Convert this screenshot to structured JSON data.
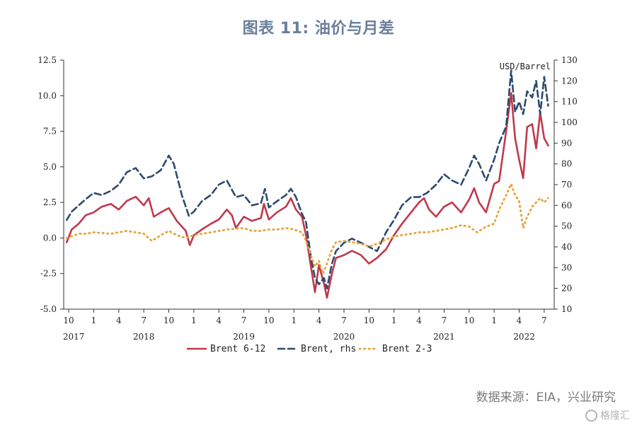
{
  "title": "图表 11: 油价与月差",
  "source": "数据来源：EIA，兴业研究",
  "watermark": "格隆汇",
  "chart_data": {
    "type": "line",
    "y_left": {
      "min": -5.0,
      "max": 12.5,
      "ticks": [
        "12.5",
        "10.0",
        "7.5",
        "5.0",
        "2.5",
        "0.0",
        "-2.5",
        "-5.0"
      ]
    },
    "y_right": {
      "unit": "USD/Barrel",
      "min": 10,
      "max": 130,
      "ticks": [
        "130",
        "120",
        "110",
        "100",
        "90",
        "80",
        "70",
        "60",
        "50",
        "40",
        "30",
        "20",
        "10"
      ]
    },
    "x_range": [
      2017.7,
      2022.6
    ],
    "x_ticks": [
      {
        "t": 2017.75,
        "label": "10"
      },
      {
        "t": 2018.0,
        "label": "1"
      },
      {
        "t": 2018.25,
        "label": "4"
      },
      {
        "t": 2018.5,
        "label": "7"
      },
      {
        "t": 2018.75,
        "label": "10"
      },
      {
        "t": 2019.0,
        "label": "1"
      },
      {
        "t": 2019.25,
        "label": "4"
      },
      {
        "t": 2019.5,
        "label": "7"
      },
      {
        "t": 2019.75,
        "label": "10"
      },
      {
        "t": 2020.0,
        "label": "1"
      },
      {
        "t": 2020.25,
        "label": "4"
      },
      {
        "t": 2020.5,
        "label": "7"
      },
      {
        "t": 2020.75,
        "label": "10"
      },
      {
        "t": 2021.0,
        "label": "1"
      },
      {
        "t": 2021.25,
        "label": "4"
      },
      {
        "t": 2021.5,
        "label": "7"
      },
      {
        "t": 2021.75,
        "label": "10"
      },
      {
        "t": 2022.0,
        "label": "1"
      },
      {
        "t": 2022.25,
        "label": "4"
      },
      {
        "t": 2022.5,
        "label": "7"
      }
    ],
    "year_labels": [
      {
        "t": 2017.8,
        "label": "2017"
      },
      {
        "t": 2018.5,
        "label": "2018"
      },
      {
        "t": 2019.5,
        "label": "2019"
      },
      {
        "t": 2020.5,
        "label": "2020"
      },
      {
        "t": 2021.5,
        "label": "2021"
      },
      {
        "t": 2022.3,
        "label": "2022"
      }
    ],
    "series": [
      {
        "name": "Brent 6-12",
        "axis": "left",
        "color": "#c0394b",
        "style": "solid",
        "points": [
          [
            2017.73,
            -0.3
          ],
          [
            2017.78,
            0.6
          ],
          [
            2017.85,
            1.0
          ],
          [
            2017.92,
            1.6
          ],
          [
            2018.0,
            1.8
          ],
          [
            2018.08,
            2.2
          ],
          [
            2018.17,
            2.4
          ],
          [
            2018.25,
            2.0
          ],
          [
            2018.33,
            2.6
          ],
          [
            2018.42,
            2.9
          ],
          [
            2018.5,
            2.3
          ],
          [
            2018.55,
            2.8
          ],
          [
            2018.6,
            1.5
          ],
          [
            2018.67,
            1.8
          ],
          [
            2018.75,
            2.1
          ],
          [
            2018.83,
            1.2
          ],
          [
            2018.92,
            0.5
          ],
          [
            2018.96,
            -0.5
          ],
          [
            2019.0,
            0.2
          ],
          [
            2019.08,
            0.6
          ],
          [
            2019.17,
            1.0
          ],
          [
            2019.25,
            1.3
          ],
          [
            2019.33,
            2.0
          ],
          [
            2019.38,
            1.6
          ],
          [
            2019.42,
            0.7
          ],
          [
            2019.5,
            1.5
          ],
          [
            2019.58,
            1.2
          ],
          [
            2019.67,
            1.4
          ],
          [
            2019.7,
            2.4
          ],
          [
            2019.75,
            1.3
          ],
          [
            2019.83,
            1.8
          ],
          [
            2019.92,
            2.2
          ],
          [
            2019.97,
            2.8
          ],
          [
            2020.02,
            2.0
          ],
          [
            2020.08,
            1.5
          ],
          [
            2020.12,
            0.2
          ],
          [
            2020.17,
            -2.0
          ],
          [
            2020.21,
            -3.8
          ],
          [
            2020.25,
            -1.9
          ],
          [
            2020.3,
            -3.2
          ],
          [
            2020.33,
            -4.2
          ],
          [
            2020.38,
            -2.5
          ],
          [
            2020.42,
            -1.4
          ],
          [
            2020.5,
            -1.2
          ],
          [
            2020.58,
            -0.9
          ],
          [
            2020.67,
            -1.2
          ],
          [
            2020.75,
            -1.8
          ],
          [
            2020.83,
            -1.4
          ],
          [
            2020.92,
            -0.8
          ],
          [
            2021.0,
            0.2
          ],
          [
            2021.08,
            1.0
          ],
          [
            2021.17,
            1.8
          ],
          [
            2021.25,
            2.5
          ],
          [
            2021.3,
            2.8
          ],
          [
            2021.35,
            2.0
          ],
          [
            2021.42,
            1.5
          ],
          [
            2021.5,
            2.2
          ],
          [
            2021.58,
            2.5
          ],
          [
            2021.67,
            1.8
          ],
          [
            2021.75,
            2.7
          ],
          [
            2021.8,
            3.5
          ],
          [
            2021.85,
            2.5
          ],
          [
            2021.92,
            1.8
          ],
          [
            2022.0,
            3.8
          ],
          [
            2022.05,
            4.0
          ],
          [
            2022.12,
            7.5
          ],
          [
            2022.17,
            10.2
          ],
          [
            2022.21,
            7.0
          ],
          [
            2022.25,
            5.5
          ],
          [
            2022.29,
            4.2
          ],
          [
            2022.33,
            7.8
          ],
          [
            2022.38,
            8.0
          ],
          [
            2022.42,
            6.3
          ],
          [
            2022.46,
            8.8
          ],
          [
            2022.5,
            7.0
          ],
          [
            2022.54,
            6.5
          ]
        ]
      },
      {
        "name": "Brent, rhs",
        "axis": "right",
        "color": "#2c4a6e",
        "style": "dashed",
        "points": [
          [
            2017.73,
            53
          ],
          [
            2017.78,
            57
          ],
          [
            2017.85,
            60
          ],
          [
            2017.92,
            63
          ],
          [
            2018.0,
            66
          ],
          [
            2018.08,
            65
          ],
          [
            2018.17,
            67
          ],
          [
            2018.25,
            70
          ],
          [
            2018.33,
            76
          ],
          [
            2018.42,
            78
          ],
          [
            2018.5,
            73
          ],
          [
            2018.58,
            74
          ],
          [
            2018.67,
            77
          ],
          [
            2018.75,
            84
          ],
          [
            2018.8,
            80
          ],
          [
            2018.88,
            65
          ],
          [
            2018.95,
            55
          ],
          [
            2019.0,
            57
          ],
          [
            2019.08,
            62
          ],
          [
            2019.17,
            65
          ],
          [
            2019.25,
            70
          ],
          [
            2019.33,
            72
          ],
          [
            2019.42,
            64
          ],
          [
            2019.5,
            65
          ],
          [
            2019.58,
            60
          ],
          [
            2019.67,
            61
          ],
          [
            2019.71,
            68
          ],
          [
            2019.75,
            59
          ],
          [
            2019.83,
            62
          ],
          [
            2019.92,
            65
          ],
          [
            2019.97,
            68
          ],
          [
            2020.02,
            64
          ],
          [
            2020.08,
            56
          ],
          [
            2020.12,
            52
          ],
          [
            2020.17,
            35
          ],
          [
            2020.21,
            25
          ],
          [
            2020.25,
            22
          ],
          [
            2020.3,
            25
          ],
          [
            2020.33,
            20
          ],
          [
            2020.38,
            32
          ],
          [
            2020.42,
            38
          ],
          [
            2020.5,
            42
          ],
          [
            2020.58,
            44
          ],
          [
            2020.67,
            42
          ],
          [
            2020.75,
            40
          ],
          [
            2020.83,
            38
          ],
          [
            2020.92,
            47
          ],
          [
            2021.0,
            53
          ],
          [
            2021.08,
            60
          ],
          [
            2021.17,
            64
          ],
          [
            2021.25,
            64
          ],
          [
            2021.33,
            66
          ],
          [
            2021.42,
            70
          ],
          [
            2021.5,
            75
          ],
          [
            2021.58,
            72
          ],
          [
            2021.67,
            70
          ],
          [
            2021.75,
            78
          ],
          [
            2021.8,
            84
          ],
          [
            2021.85,
            80
          ],
          [
            2021.92,
            72
          ],
          [
            2022.0,
            82
          ],
          [
            2022.05,
            90
          ],
          [
            2022.12,
            98
          ],
          [
            2022.17,
            125
          ],
          [
            2022.21,
            105
          ],
          [
            2022.25,
            110
          ],
          [
            2022.29,
            104
          ],
          [
            2022.33,
            115
          ],
          [
            2022.38,
            112
          ],
          [
            2022.42,
            120
          ],
          [
            2022.46,
            104
          ],
          [
            2022.5,
            122
          ],
          [
            2022.54,
            108
          ]
        ]
      },
      {
        "name": "Brent 2-3",
        "axis": "left",
        "color": "#e8a33b",
        "style": "dotted",
        "points": [
          [
            2017.73,
            0.0
          ],
          [
            2017.85,
            0.3
          ],
          [
            2017.92,
            0.3
          ],
          [
            2018.0,
            0.4
          ],
          [
            2018.17,
            0.3
          ],
          [
            2018.33,
            0.5
          ],
          [
            2018.42,
            0.4
          ],
          [
            2018.5,
            0.3
          ],
          [
            2018.58,
            -0.2
          ],
          [
            2018.67,
            0.2
          ],
          [
            2018.75,
            0.5
          ],
          [
            2018.83,
            0.2
          ],
          [
            2018.92,
            0.0
          ],
          [
            2019.0,
            0.2
          ],
          [
            2019.17,
            0.4
          ],
          [
            2019.33,
            0.6
          ],
          [
            2019.5,
            0.7
          ],
          [
            2019.58,
            0.5
          ],
          [
            2019.67,
            0.5
          ],
          [
            2019.75,
            0.6
          ],
          [
            2019.83,
            0.6
          ],
          [
            2019.92,
            0.7
          ],
          [
            2020.0,
            0.6
          ],
          [
            2020.08,
            0.4
          ],
          [
            2020.12,
            -0.2
          ],
          [
            2020.17,
            -1.2
          ],
          [
            2020.21,
            -2.0
          ],
          [
            2020.25,
            -1.6
          ],
          [
            2020.29,
            -2.5
          ],
          [
            2020.33,
            -1.8
          ],
          [
            2020.38,
            -0.8
          ],
          [
            2020.42,
            -0.3
          ],
          [
            2020.5,
            -0.2
          ],
          [
            2020.58,
            -0.3
          ],
          [
            2020.67,
            -0.4
          ],
          [
            2020.75,
            -0.6
          ],
          [
            2020.83,
            -0.4
          ],
          [
            2020.92,
            -0.1
          ],
          [
            2021.0,
            0.1
          ],
          [
            2021.08,
            0.2
          ],
          [
            2021.17,
            0.3
          ],
          [
            2021.25,
            0.4
          ],
          [
            2021.33,
            0.4
          ],
          [
            2021.42,
            0.5
          ],
          [
            2021.5,
            0.6
          ],
          [
            2021.58,
            0.7
          ],
          [
            2021.67,
            0.9
          ],
          [
            2021.75,
            0.8
          ],
          [
            2021.83,
            0.4
          ],
          [
            2021.92,
            0.8
          ],
          [
            2022.0,
            1.0
          ],
          [
            2022.05,
            2.0
          ],
          [
            2022.12,
            3.0
          ],
          [
            2022.17,
            3.8
          ],
          [
            2022.21,
            3.0
          ],
          [
            2022.25,
            2.6
          ],
          [
            2022.29,
            0.7
          ],
          [
            2022.33,
            1.5
          ],
          [
            2022.38,
            2.2
          ],
          [
            2022.42,
            2.5
          ],
          [
            2022.46,
            2.8
          ],
          [
            2022.5,
            2.5
          ],
          [
            2022.54,
            2.8
          ]
        ]
      }
    ],
    "legend": [
      "Brent 6-12",
      "Brent, rhs",
      "Brent 2-3"
    ],
    "legend_position": "bottom"
  }
}
